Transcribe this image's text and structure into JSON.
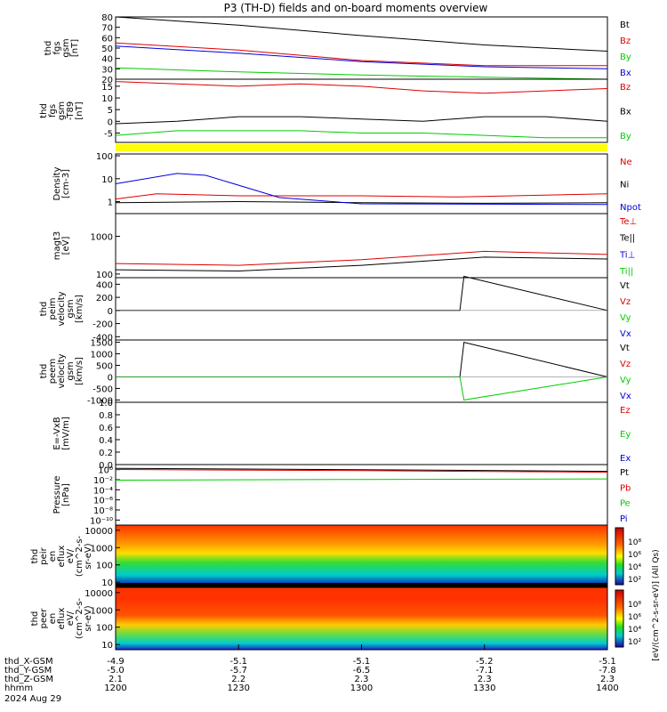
{
  "title": "P3 (TH-D) fields and on-board moments overview",
  "colors": {
    "black": "#000000",
    "red": "#dd0000",
    "green": "#00cc00",
    "blue": "#0000dd",
    "yellow": "#ffff00"
  },
  "chart_data": [
    {
      "id": "fgs_gsm",
      "type": "line",
      "ylabel": [
        "thd",
        "fgs",
        "gsm",
        "[nT]"
      ],
      "ylim": [
        20,
        80
      ],
      "yticks": [
        "20",
        "30",
        "40",
        "50",
        "60",
        "70",
        "80"
      ],
      "legend": [
        {
          "name": "Bt",
          "color": "black"
        },
        {
          "name": "Bz",
          "color": "red"
        },
        {
          "name": "By",
          "color": "green"
        },
        {
          "name": "Bx",
          "color": "blue"
        }
      ],
      "series": [
        {
          "name": "Bt",
          "color": "black",
          "x": [
            1200,
            1230,
            1300,
            1330,
            1400
          ],
          "y": [
            80,
            72,
            62,
            53,
            47
          ]
        },
        {
          "name": "Bz",
          "color": "red",
          "x": [
            1200,
            1230,
            1300,
            1330,
            1400
          ],
          "y": [
            55,
            48,
            38,
            33,
            33
          ]
        },
        {
          "name": "By",
          "color": "green",
          "x": [
            1200,
            1230,
            1300,
            1330,
            1400
          ],
          "y": [
            31,
            27,
            24,
            22,
            20
          ]
        },
        {
          "name": "Bx",
          "color": "blue",
          "x": [
            1200,
            1230,
            1300,
            1330,
            1400
          ],
          "y": [
            52,
            45,
            37,
            32,
            30
          ]
        }
      ]
    },
    {
      "id": "fgs_dsl",
      "type": "line",
      "ylabel": [
        "thd",
        "fgs",
        "gsm",
        "-T89",
        "[nT]"
      ],
      "ylim": [
        -9,
        18
      ],
      "yticks": [
        "-5",
        "0",
        "5",
        "10",
        "15"
      ],
      "legend": [
        {
          "name": "Bz",
          "color": "red"
        },
        {
          "name": "Bx",
          "color": "black"
        },
        {
          "name": "By",
          "color": "green"
        }
      ],
      "series": [
        {
          "name": "Bz",
          "color": "red",
          "x": [
            1200,
            1215,
            1230,
            1245,
            1300,
            1315,
            1330,
            1345,
            1400
          ],
          "y": [
            17,
            16,
            15,
            16,
            15,
            13,
            12,
            13,
            14
          ]
        },
        {
          "name": "Bx",
          "color": "black",
          "x": [
            1200,
            1215,
            1230,
            1245,
            1300,
            1315,
            1330,
            1345,
            1400
          ],
          "y": [
            -1,
            0,
            2,
            2,
            1,
            0,
            2,
            2,
            0
          ]
        },
        {
          "name": "By",
          "color": "green",
          "x": [
            1200,
            1215,
            1230,
            1245,
            1300,
            1315,
            1330,
            1345,
            1400
          ],
          "y": [
            -6,
            -4,
            -4,
            -4,
            -5,
            -5,
            -6,
            -7,
            -7
          ]
        }
      ]
    },
    {
      "id": "density",
      "type": "line",
      "ylabel": [
        "Density",
        "[cm-3]"
      ],
      "ylim": [
        0.3,
        120
      ],
      "yticks": [
        "1",
        "10",
        "100"
      ],
      "legend": [
        {
          "name": "Ne",
          "color": "red"
        },
        {
          "name": "Ni",
          "color": "black"
        },
        {
          "name": "Npot",
          "color": "blue"
        }
      ],
      "series": [
        {
          "name": "Ne",
          "color": "red",
          "x": [
            1200,
            1210,
            1230,
            1300,
            1324,
            1400
          ],
          "y": [
            1.3,
            2.2,
            1.8,
            1.8,
            1.6,
            2.2
          ]
        },
        {
          "name": "Ni",
          "color": "black",
          "x": [
            1200,
            1230,
            1300,
            1330,
            1400
          ],
          "y": [
            0.9,
            1.0,
            0.9,
            0.85,
            0.9
          ]
        },
        {
          "name": "Npot",
          "color": "blue",
          "x": [
            1200,
            1215,
            1222,
            1240,
            1300,
            1400
          ],
          "y": [
            6,
            17,
            14,
            1.5,
            0.8,
            0.75
          ]
        }
      ]
    },
    {
      "id": "temperature",
      "type": "line",
      "ylabel": [
        "magt3",
        "[eV]"
      ],
      "ylim": [
        80,
        4000
      ],
      "yticks": [
        "100",
        "1000"
      ],
      "legend": [
        {
          "name": "Te⊥",
          "color": "red"
        },
        {
          "name": "Te||",
          "color": "black"
        },
        {
          "name": "Ti⊥",
          "color": "blue"
        },
        {
          "name": "Ti||",
          "color": "green"
        }
      ],
      "series": [
        {
          "name": "Te⊥",
          "color": "red",
          "x": [
            1200,
            1230,
            1300,
            1330,
            1400
          ],
          "y": [
            190,
            170,
            240,
            400,
            330
          ]
        },
        {
          "name": "Te||",
          "color": "black",
          "x": [
            1200,
            1230,
            1300,
            1330,
            1400
          ],
          "y": [
            130,
            120,
            170,
            280,
            250
          ]
        }
      ]
    },
    {
      "id": "peim_velocity",
      "type": "line",
      "ylabel": [
        "thd",
        "peim",
        "velocity",
        "gsm",
        "[km/s]"
      ],
      "ylim": [
        -450,
        500
      ],
      "yticks": [
        "-400",
        "-200",
        "0",
        "200",
        "400"
      ],
      "legend": [
        {
          "name": "Vt",
          "color": "black"
        },
        {
          "name": "Vz",
          "color": "red"
        },
        {
          "name": "Vy",
          "color": "green"
        },
        {
          "name": "Vx",
          "color": "blue"
        }
      ],
      "series": [
        {
          "name": "Vt",
          "color": "black",
          "x": [
            1200,
            1324,
            1325,
            1400
          ],
          "y": [
            0,
            0,
            520,
            0
          ]
        }
      ]
    },
    {
      "id": "peem_velocity",
      "type": "line",
      "ylabel": [
        "thd",
        "peem",
        "velocity",
        "gsm",
        "[km/s]"
      ],
      "ylim": [
        -1100,
        1600
      ],
      "yticks": [
        "-1000",
        "-500",
        "0",
        "500",
        "1000",
        "1500"
      ],
      "legend": [
        {
          "name": "Vt",
          "color": "black"
        },
        {
          "name": "Vz",
          "color": "red"
        },
        {
          "name": "Vy",
          "color": "green"
        },
        {
          "name": "Vx",
          "color": "blue"
        }
      ],
      "series": [
        {
          "name": "Vt",
          "color": "black",
          "x": [
            1200,
            1324,
            1325,
            1400
          ],
          "y": [
            0,
            0,
            1500,
            0
          ]
        },
        {
          "name": "Vy",
          "color": "green",
          "x": [
            1200,
            1324,
            1325,
            1400
          ],
          "y": [
            0,
            0,
            -1000,
            0
          ]
        }
      ]
    },
    {
      "id": "efield",
      "type": "line",
      "ylabel": [
        "E=-VxB",
        "[mV/m]"
      ],
      "ylim": [
        0,
        1
      ],
      "yticks": [
        "0.0",
        "0.2",
        "0.4",
        "0.6",
        "0.8",
        "1.0"
      ],
      "legend": [
        {
          "name": "Ez",
          "color": "red"
        },
        {
          "name": "Ey",
          "color": "green"
        },
        {
          "name": "Ex",
          "color": "blue"
        }
      ],
      "series": []
    },
    {
      "id": "pressure",
      "type": "line",
      "ylabel": [
        "Pressure",
        "[nPa]"
      ],
      "ylim": [
        1e-10,
        10
      ],
      "yticks": [
        "10⁰",
        "10⁻²",
        "10⁻⁴",
        "10⁻⁶",
        "10⁻⁸",
        "10⁻¹⁰"
      ],
      "legend": [
        {
          "name": "Pt",
          "color": "black"
        },
        {
          "name": "Pb",
          "color": "red"
        },
        {
          "name": "Pe",
          "color": "green"
        },
        {
          "name": "Pi",
          "color": "blue"
        }
      ],
      "series": [
        {
          "name": "Pt",
          "color": "black",
          "x": [
            1200,
            1300,
            1400
          ],
          "y": [
            2,
            1.2,
            0.6
          ]
        },
        {
          "name": "Pb",
          "color": "red",
          "x": [
            1200,
            1300,
            1400
          ],
          "y": [
            1.3,
            0.8,
            0.4
          ]
        },
        {
          "name": "Pe",
          "color": "green",
          "x": [
            1200,
            1300,
            1400
          ],
          "y": [
            0.015,
            0.02,
            0.025
          ]
        }
      ]
    },
    {
      "id": "peir_spec",
      "type": "heatmap",
      "ylabel": [
        "thd",
        "peir",
        "en",
        "eflux",
        "eV/",
        "(cm^2-s-",
        "sr-eV)"
      ],
      "ylim": [
        5,
        20000
      ],
      "yticks": [
        "10",
        "100",
        "1000",
        "10000"
      ]
    },
    {
      "id": "peer_spec",
      "type": "heatmap",
      "ylabel": [
        "thd",
        "peer",
        "en",
        "eflux",
        "eV/",
        "(cm^2-s-",
        "sr-eV)"
      ],
      "ylim": [
        5,
        20000
      ],
      "yticks": [
        "10",
        "100",
        "1000",
        "10000"
      ]
    }
  ],
  "colorbar": {
    "label": "[eV/(cm^2-s-sr-eV)] (All Qs)",
    "ticks_top": [
      "10⁸",
      "10⁶",
      "10⁴",
      "10²"
    ],
    "ticks_bottom": [
      "10⁸",
      "10⁶",
      "10⁴",
      "10²"
    ]
  },
  "xaxis": {
    "rows": [
      {
        "label": "thd_X-GSM",
        "values": [
          "-4.9",
          "-5.1",
          "-5.1",
          "-5.2",
          "-5.1"
        ]
      },
      {
        "label": "thd_Y-GSM",
        "values": [
          "-5.0",
          "-5.7",
          "-6.5",
          "-7.1",
          "-7.8"
        ]
      },
      {
        "label": "thd_Z-GSM",
        "values": [
          "2.1",
          "2.2",
          "2.3",
          "2.3",
          "2.3"
        ]
      },
      {
        "label": "hhmm",
        "values": [
          "1200",
          "1230",
          "1300",
          "1330",
          "1400"
        ]
      }
    ],
    "date": "2024 Aug 29"
  }
}
